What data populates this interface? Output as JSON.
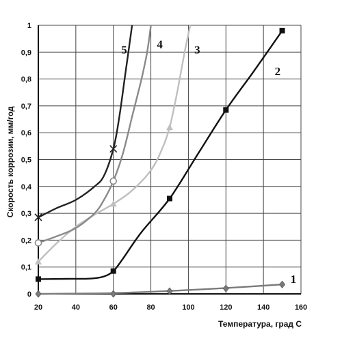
{
  "chart_data": {
    "type": "line",
    "title": "",
    "xlabel": "Температура, град С",
    "ylabel": "Скорость коррозии, мм/год",
    "xlim": [
      20,
      160
    ],
    "ylim": [
      0,
      1
    ],
    "x_ticks": [
      "20",
      "40",
      "60",
      "80",
      "100",
      "120",
      "140",
      "160"
    ],
    "y_ticks": [
      "0",
      "0,1",
      "0,2",
      "0,3",
      "0,4",
      "0,5",
      "0,6",
      "0,7",
      "0,8",
      "0,9",
      "1"
    ],
    "grid": true,
    "series": [
      {
        "name": "1",
        "color": "#7a7a7a",
        "marker": "diamond",
        "markers": [
          [
            20,
            0.0
          ],
          [
            60,
            0.0
          ],
          [
            90,
            0.01
          ],
          [
            120,
            0.02
          ],
          [
            150,
            0.035
          ]
        ],
        "curve": [
          [
            20,
            0.0
          ],
          [
            60,
            0.003
          ],
          [
            90,
            0.011
          ],
          [
            120,
            0.022
          ],
          [
            150,
            0.035
          ]
        ],
        "label_at": [
          150,
          0.035
        ]
      },
      {
        "name": "2",
        "color": "#111111",
        "marker": "square",
        "markers": [
          [
            20,
            0.055
          ],
          [
            60,
            0.085
          ],
          [
            90,
            0.355
          ],
          [
            120,
            0.685
          ],
          [
            150,
            0.98
          ]
        ],
        "curve": [
          [
            20,
            0.055
          ],
          [
            35,
            0.056
          ],
          [
            48,
            0.057
          ],
          [
            55,
            0.065
          ],
          [
            60,
            0.085
          ],
          [
            65,
            0.13
          ],
          [
            75,
            0.23
          ],
          [
            90,
            0.355
          ],
          [
            105,
            0.52
          ],
          [
            120,
            0.685
          ],
          [
            135,
            0.83
          ],
          [
            150,
            0.98
          ]
        ],
        "label_at": [
          146,
          0.83
        ]
      },
      {
        "name": "3",
        "color": "#bfbfbf",
        "marker": "triangle",
        "markers": [
          [
            20,
            0.12
          ],
          [
            60,
            0.335
          ],
          [
            90,
            0.62
          ]
        ],
        "curve": [
          [
            20,
            0.12
          ],
          [
            30,
            0.19
          ],
          [
            40,
            0.25
          ],
          [
            50,
            0.295
          ],
          [
            60,
            0.335
          ],
          [
            70,
            0.385
          ],
          [
            80,
            0.46
          ],
          [
            86,
            0.54
          ],
          [
            90,
            0.62
          ],
          [
            94,
            0.75
          ],
          [
            98,
            0.9
          ],
          [
            101,
            1.0
          ]
        ],
        "label_at": [
          101,
          0.91
        ]
      },
      {
        "name": "4",
        "color": "#8a8a8a",
        "marker": "circle",
        "markers": [
          [
            20,
            0.19
          ],
          [
            60,
            0.42
          ]
        ],
        "curve": [
          [
            20,
            0.19
          ],
          [
            30,
            0.215
          ],
          [
            40,
            0.245
          ],
          [
            50,
            0.3
          ],
          [
            55,
            0.35
          ],
          [
            60,
            0.42
          ],
          [
            65,
            0.52
          ],
          [
            70,
            0.66
          ],
          [
            75,
            0.8
          ],
          [
            78,
            0.9
          ],
          [
            80,
            1.0
          ]
        ],
        "label_at": [
          81,
          0.93
        ]
      },
      {
        "name": "5",
        "color": "#222222",
        "marker": "x",
        "markers": [
          [
            20,
            0.285
          ],
          [
            60,
            0.54
          ]
        ],
        "curve": [
          [
            20,
            0.285
          ],
          [
            30,
            0.32
          ],
          [
            40,
            0.35
          ],
          [
            50,
            0.4
          ],
          [
            55,
            0.44
          ],
          [
            60,
            0.54
          ],
          [
            63,
            0.65
          ],
          [
            66,
            0.8
          ],
          [
            68,
            0.9
          ],
          [
            70,
            1.0
          ]
        ],
        "label_at": [
          62,
          0.91
        ]
      }
    ]
  }
}
